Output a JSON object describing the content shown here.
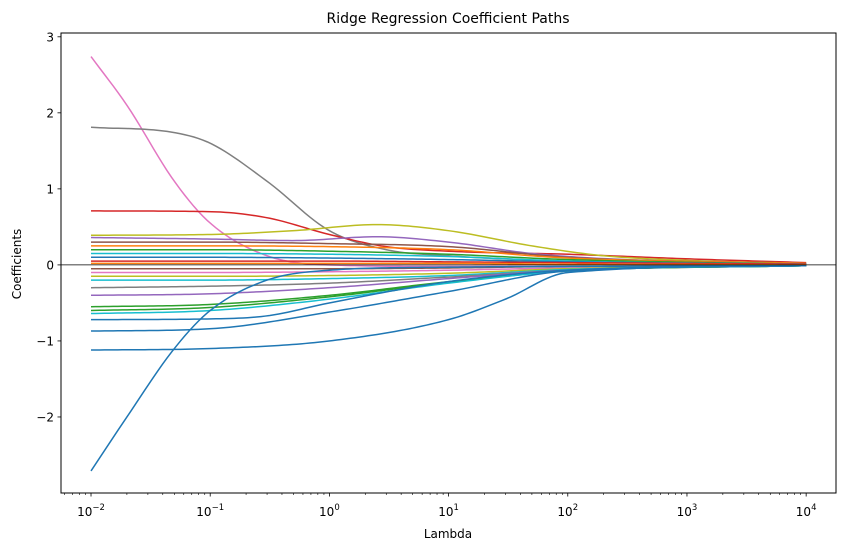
{
  "chart_data": {
    "type": "line",
    "title": "Ridge Regression Coefficient Paths",
    "xlabel": "Lambda",
    "ylabel": "Coefficients",
    "xscale": "log",
    "xlim": [
      0.0056,
      17800
    ],
    "ylim": [
      -3.0,
      3.05
    ],
    "grid": false,
    "legend": "none",
    "x_ticks": [
      {
        "value": 0.01,
        "base": "10",
        "exp": "−2"
      },
      {
        "value": 0.1,
        "base": "10",
        "exp": "−1"
      },
      {
        "value": 1,
        "base": "10",
        "exp": "0"
      },
      {
        "value": 10,
        "base": "10",
        "exp": "1"
      },
      {
        "value": 100,
        "base": "10",
        "exp": "2"
      },
      {
        "value": 1000,
        "base": "10",
        "exp": "3"
      },
      {
        "value": 10000,
        "base": "10",
        "exp": "4"
      }
    ],
    "y_ticks": [
      {
        "value": -2,
        "label": "−2"
      },
      {
        "value": -1,
        "label": "−1"
      },
      {
        "value": 0,
        "label": "0"
      },
      {
        "value": 1,
        "label": "1"
      },
      {
        "value": 2,
        "label": "2"
      },
      {
        "value": 3,
        "label": "3"
      }
    ],
    "reference_line": {
      "y": 0,
      "color": "#000000"
    },
    "series": [
      {
        "color": "#e377c2",
        "values": [
          [
            0.01,
            2.74
          ],
          [
            0.02,
            2.1
          ],
          [
            0.05,
            1.1
          ],
          [
            0.1,
            0.55
          ],
          [
            0.3,
            0.12
          ],
          [
            1,
            0.0
          ],
          [
            10,
            -0.02
          ],
          [
            100,
            -0.02
          ],
          [
            10000,
            -0.01
          ]
        ]
      },
      {
        "color": "#7f7f7f",
        "values": [
          [
            0.01,
            1.81
          ],
          [
            0.05,
            1.74
          ],
          [
            0.1,
            1.6
          ],
          [
            0.3,
            1.1
          ],
          [
            1,
            0.45
          ],
          [
            3,
            0.2
          ],
          [
            10,
            0.12
          ],
          [
            100,
            0.05
          ],
          [
            10000,
            0.0
          ]
        ]
      },
      {
        "color": "#d62728",
        "values": [
          [
            0.01,
            0.71
          ],
          [
            0.1,
            0.7
          ],
          [
            0.3,
            0.62
          ],
          [
            1,
            0.4
          ],
          [
            3,
            0.24
          ],
          [
            10,
            0.18
          ],
          [
            100,
            0.14
          ],
          [
            1000,
            0.08
          ],
          [
            10000,
            0.03
          ]
        ]
      },
      {
        "color": "#bcbd22",
        "values": [
          [
            0.01,
            0.39
          ],
          [
            0.1,
            0.4
          ],
          [
            0.5,
            0.45
          ],
          [
            2.5,
            0.53
          ],
          [
            10,
            0.45
          ],
          [
            50,
            0.25
          ],
          [
            200,
            0.12
          ],
          [
            1000,
            0.06
          ],
          [
            10000,
            0.02
          ]
        ]
      },
      {
        "color": "#9467bd",
        "values": [
          [
            0.01,
            0.36
          ],
          [
            0.1,
            0.34
          ],
          [
            0.5,
            0.32
          ],
          [
            2.5,
            0.37
          ],
          [
            10,
            0.3
          ],
          [
            50,
            0.15
          ],
          [
            300,
            0.07
          ],
          [
            10000,
            0.02
          ]
        ]
      },
      {
        "color": "#8c564b",
        "values": [
          [
            0.01,
            0.3
          ],
          [
            0.1,
            0.3
          ],
          [
            1,
            0.28
          ],
          [
            10,
            0.24
          ],
          [
            100,
            0.1
          ],
          [
            10000,
            0.02
          ]
        ]
      },
      {
        "color": "#ff7f0e",
        "values": [
          [
            0.01,
            0.25
          ],
          [
            0.1,
            0.25
          ],
          [
            1,
            0.24
          ],
          [
            10,
            0.2
          ],
          [
            100,
            0.09
          ],
          [
            10000,
            0.02
          ]
        ]
      },
      {
        "color": "#2ca02c",
        "values": [
          [
            0.01,
            0.2
          ],
          [
            0.1,
            0.2
          ],
          [
            1,
            0.18
          ],
          [
            10,
            0.14
          ],
          [
            100,
            0.07
          ],
          [
            10000,
            0.01
          ]
        ]
      },
      {
        "color": "#17becf",
        "values": [
          [
            0.01,
            0.15
          ],
          [
            0.1,
            0.15
          ],
          [
            1,
            0.14
          ],
          [
            10,
            0.11
          ],
          [
            100,
            0.05
          ],
          [
            10000,
            0.01
          ]
        ]
      },
      {
        "color": "#1f77b4",
        "values": [
          [
            0.01,
            0.1
          ],
          [
            0.1,
            0.1
          ],
          [
            1,
            0.09
          ],
          [
            10,
            0.07
          ],
          [
            100,
            0.04
          ],
          [
            10000,
            0.01
          ]
        ]
      },
      {
        "color": "#d62728",
        "values": [
          [
            0.01,
            0.05
          ],
          [
            0.1,
            0.05
          ],
          [
            1,
            0.05
          ],
          [
            10,
            0.04
          ],
          [
            100,
            0.03
          ],
          [
            10000,
            0.01
          ]
        ]
      },
      {
        "color": "#ff7f0e",
        "values": [
          [
            0.01,
            0.02
          ],
          [
            1,
            0.02
          ],
          [
            10,
            0.02
          ],
          [
            100,
            0.01
          ],
          [
            10000,
            0.0
          ]
        ]
      },
      {
        "color": "#8c564b",
        "values": [
          [
            0.01,
            -0.05
          ],
          [
            0.1,
            -0.05
          ],
          [
            1,
            -0.05
          ],
          [
            10,
            -0.04
          ],
          [
            100,
            -0.02
          ],
          [
            10000,
            -0.01
          ]
        ]
      },
      {
        "color": "#e377c2",
        "values": [
          [
            0.01,
            -0.1
          ],
          [
            0.1,
            -0.1
          ],
          [
            1,
            -0.09
          ],
          [
            10,
            -0.07
          ],
          [
            100,
            -0.04
          ],
          [
            10000,
            -0.01
          ]
        ]
      },
      {
        "color": "#bcbd22",
        "values": [
          [
            0.01,
            -0.15
          ],
          [
            0.1,
            -0.15
          ],
          [
            1,
            -0.14
          ],
          [
            10,
            -0.11
          ],
          [
            100,
            -0.05
          ],
          [
            10000,
            -0.01
          ]
        ]
      },
      {
        "color": "#17becf",
        "values": [
          [
            0.01,
            -0.2
          ],
          [
            0.1,
            -0.2
          ],
          [
            1,
            -0.18
          ],
          [
            10,
            -0.14
          ],
          [
            100,
            -0.06
          ],
          [
            10000,
            -0.01
          ]
        ]
      },
      {
        "color": "#7f7f7f",
        "values": [
          [
            0.01,
            -0.3
          ],
          [
            0.1,
            -0.28
          ],
          [
            1,
            -0.24
          ],
          [
            10,
            -0.16
          ],
          [
            100,
            -0.07
          ],
          [
            10000,
            -0.01
          ]
        ]
      },
      {
        "color": "#9467bd",
        "values": [
          [
            0.01,
            -0.4
          ],
          [
            0.1,
            -0.38
          ],
          [
            1,
            -0.3
          ],
          [
            10,
            -0.18
          ],
          [
            100,
            -0.07
          ],
          [
            10000,
            -0.01
          ]
        ]
      },
      {
        "color": "#2ca02c",
        "values": [
          [
            0.01,
            -0.55
          ],
          [
            0.1,
            -0.52
          ],
          [
            1,
            -0.4
          ],
          [
            10,
            -0.22
          ],
          [
            100,
            -0.08
          ],
          [
            10000,
            -0.01
          ]
        ]
      },
      {
        "color": "#2ca02c",
        "values": [
          [
            0.01,
            -0.6
          ],
          [
            0.1,
            -0.56
          ],
          [
            1,
            -0.42
          ],
          [
            10,
            -0.23
          ],
          [
            100,
            -0.08
          ],
          [
            10000,
            -0.01
          ]
        ]
      },
      {
        "color": "#17becf",
        "values": [
          [
            0.01,
            -0.64
          ],
          [
            0.1,
            -0.6
          ],
          [
            1,
            -0.45
          ],
          [
            10,
            -0.24
          ],
          [
            100,
            -0.08
          ],
          [
            10000,
            -0.01
          ]
        ]
      },
      {
        "color": "#1f77b4",
        "values": [
          [
            0.01,
            -0.72
          ],
          [
            0.1,
            -0.71
          ],
          [
            0.3,
            -0.67
          ],
          [
            1,
            -0.5
          ],
          [
            10,
            -0.22
          ],
          [
            100,
            -0.07
          ],
          [
            10000,
            -0.01
          ]
        ]
      },
      {
        "color": "#1f77b4",
        "values": [
          [
            0.01,
            -0.87
          ],
          [
            0.1,
            -0.84
          ],
          [
            1,
            -0.62
          ],
          [
            10,
            -0.35
          ],
          [
            100,
            -0.08
          ],
          [
            10000,
            -0.01
          ]
        ]
      },
      {
        "color": "#1f77b4",
        "values": [
          [
            0.01,
            -1.12
          ],
          [
            0.1,
            -1.1
          ],
          [
            1,
            -1.0
          ],
          [
            10,
            -0.72
          ],
          [
            30,
            -0.45
          ],
          [
            100,
            -0.1
          ],
          [
            10000,
            -0.01
          ]
        ]
      },
      {
        "color": "#1f77b4",
        "values": [
          [
            0.01,
            -2.71
          ],
          [
            0.02,
            -2.0
          ],
          [
            0.05,
            -1.1
          ],
          [
            0.1,
            -0.6
          ],
          [
            0.3,
            -0.2
          ],
          [
            1,
            -0.07
          ],
          [
            10,
            -0.03
          ],
          [
            100,
            -0.02
          ],
          [
            10000,
            -0.01
          ]
        ]
      }
    ]
  }
}
